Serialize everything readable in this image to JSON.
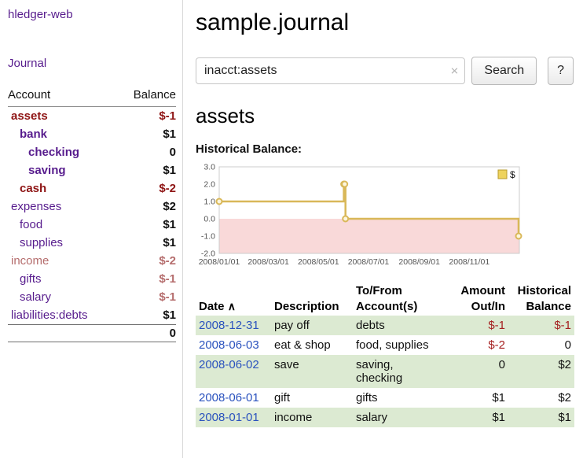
{
  "colors": {
    "link_purple": "#571c8d",
    "link_blue": "#2a52be",
    "negative_red": "#8e1414",
    "negative_faded": "#b56d6d",
    "amount_red": "#a52020",
    "row_green": "#dcead2"
  },
  "app": {
    "title": "hledger-web"
  },
  "sidebar": {
    "journal_link": "Journal",
    "accounts_header": {
      "account": "Account",
      "balance": "Balance"
    },
    "accounts": [
      {
        "name": "assets",
        "indent": 0,
        "balance": "$-1",
        "bold": true,
        "name_style": "red",
        "balance_style": "red"
      },
      {
        "name": "bank",
        "indent": 1,
        "balance": "$1",
        "bold": true,
        "name_style": "purple",
        "balance_style": "normal"
      },
      {
        "name": "checking",
        "indent": 2,
        "balance": "0",
        "bold": true,
        "name_style": "purple",
        "balance_style": "normal"
      },
      {
        "name": "saving",
        "indent": 2,
        "balance": "$1",
        "bold": true,
        "name_style": "purple",
        "balance_style": "normal"
      },
      {
        "name": "cash",
        "indent": 1,
        "balance": "$-2",
        "bold": true,
        "name_style": "red",
        "balance_style": "red"
      },
      {
        "name": "expenses",
        "indent": 0,
        "balance": "$2",
        "bold": false,
        "name_style": "purple",
        "balance_style": "normal"
      },
      {
        "name": "food",
        "indent": 1,
        "balance": "$1",
        "bold": false,
        "name_style": "purple",
        "balance_style": "normal"
      },
      {
        "name": "supplies",
        "indent": 1,
        "balance": "$1",
        "bold": false,
        "name_style": "purple",
        "balance_style": "normal"
      },
      {
        "name": "income",
        "indent": 0,
        "balance": "$-2",
        "bold": false,
        "name_style": "faded",
        "balance_style": "faded"
      },
      {
        "name": "gifts",
        "indent": 1,
        "balance": "$-1",
        "bold": false,
        "name_style": "purple",
        "balance_style": "faded"
      },
      {
        "name": "salary",
        "indent": 1,
        "balance": "$-1",
        "bold": false,
        "name_style": "purple",
        "balance_style": "faded"
      },
      {
        "name": "liabilities:debts",
        "indent": 0,
        "balance": "$1",
        "bold": false,
        "name_style": "purple",
        "balance_style": "normal"
      }
    ],
    "total": "0"
  },
  "main": {
    "title": "sample.journal",
    "search": {
      "value": "inacct:assets",
      "clear_icon": "×",
      "button_label": "Search",
      "help_label": "?"
    },
    "account_heading": "assets",
    "chart_label": "Historical Balance:"
  },
  "chart_data": {
    "type": "line",
    "step": true,
    "title": "Historical Balance",
    "series": [
      {
        "name": "$",
        "points": [
          [
            "2008-01-01",
            1.0
          ],
          [
            "2008-06-01",
            2.0
          ],
          [
            "2008-06-02",
            2.0
          ],
          [
            "2008-06-03",
            0.0
          ],
          [
            "2008-12-31",
            -1.0
          ]
        ]
      }
    ],
    "ylim": [
      -2.0,
      3.0
    ],
    "yticks": [
      3.0,
      2.0,
      1.0,
      0.0,
      -1.0,
      -2.0
    ],
    "xrange": [
      "2008-01-01",
      "2009-01-01"
    ],
    "xtick_labels": [
      "2008/01/01",
      "2008/03/01",
      "2008/05/01",
      "2008/07/01",
      "2008/09/01",
      "2008/11/01"
    ],
    "legend": {
      "label": "$",
      "position": "top-right"
    },
    "colors": {
      "line": "#d9b859",
      "marker_fill": "#fdf6dd",
      "negative_region": "#f9d9d9",
      "legend_fill": "#eed35e",
      "legend_border": "#b89b2e",
      "plot_border": "#cccccc"
    }
  },
  "register": {
    "headers": {
      "date": "Date",
      "description": "Description",
      "accounts": "To/From\nAccount(s)",
      "amount": "Amount\nOut/In",
      "balance": "Historical\nBalance"
    },
    "sort_icon": "∧",
    "rows": [
      {
        "date": "2008-12-31",
        "description": "pay off",
        "accounts": "debts",
        "amount": "$-1",
        "amount_negative": true,
        "balance": "$-1",
        "balance_negative": true
      },
      {
        "date": "2008-06-03",
        "description": "eat & shop",
        "accounts": "food, supplies",
        "amount": "$-2",
        "amount_negative": true,
        "balance": "0",
        "balance_negative": false
      },
      {
        "date": "2008-06-02",
        "description": "save",
        "accounts": "saving, checking",
        "amount": "0",
        "amount_negative": false,
        "balance": "$2",
        "balance_negative": false
      },
      {
        "date": "2008-06-01",
        "description": "gift",
        "accounts": "gifts",
        "amount": "$1",
        "amount_negative": false,
        "balance": "$2",
        "balance_negative": false
      },
      {
        "date": "2008-01-01",
        "description": "income",
        "accounts": "salary",
        "amount": "$1",
        "amount_negative": false,
        "balance": "$1",
        "balance_negative": false
      }
    ]
  }
}
